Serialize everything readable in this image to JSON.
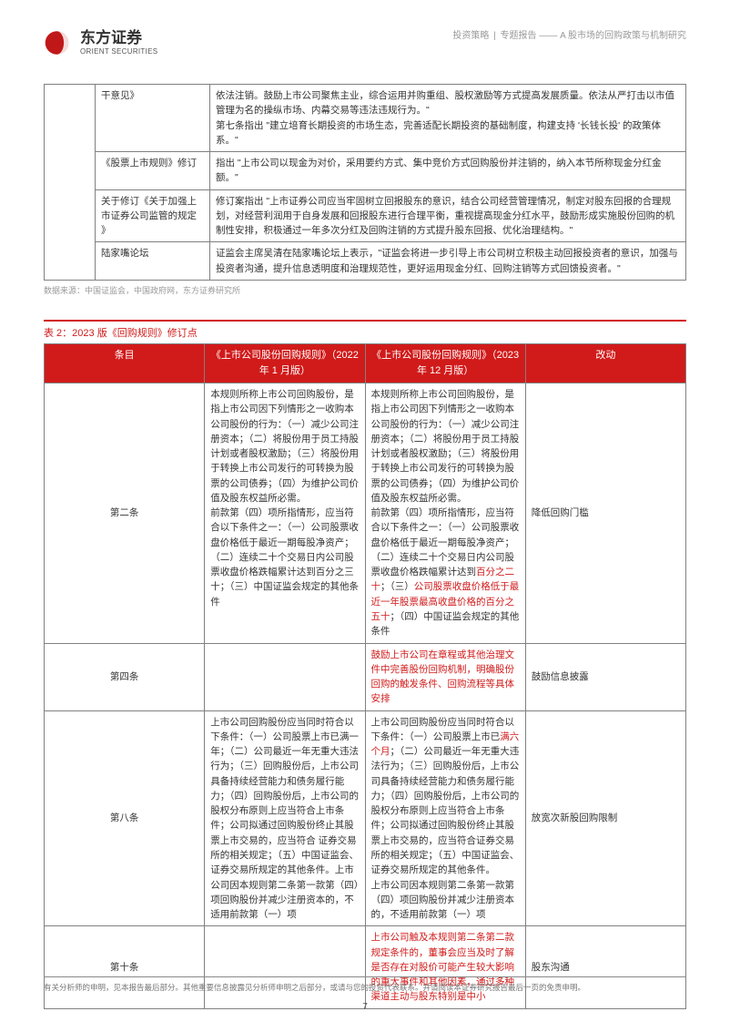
{
  "header": {
    "logo_cn": "东方证券",
    "logo_en": "ORIENT SECURITIES",
    "cat1": "投资策略",
    "cat2": "专题报告",
    "title": "A 股市场的回购政策与机制研究"
  },
  "table1": {
    "rows": [
      {
        "c2": "干意见》",
        "c3": "依法注销。鼓励上市公司聚焦主业，综合运用并购重组、股权激励等方式提高发展质量。依法从严打击以市值管理为名的操纵市场、内幕交易等违法违规行为。\"\n第七条指出 \"建立培育长期投资的市场生态，完善适配长期投资的基础制度，构建支持 '长钱长投' 的政策体系。\""
      },
      {
        "c2": "《股票上市规则》修订",
        "c3": "指出 \"上市公司以现金为对价，采用要约方式、集中竞价方式回购股份并注销的，纳入本节所称现金分红金额。\""
      },
      {
        "c2": "关于修订《关于加强上市证券公司监管的规定 》",
        "c3": "修订案指出 \"上市证券公司应当牢固树立回报股东的意识，结合公司经营管理情况，制定对股东回报的合理规划，对经营利润用于自身发展和回报股东进行合理平衡，重视提高现金分红水平，鼓励形成实施股份回购的机制性安排，积极通过一年多次分红及回购注销的方式提升股东回报、优化治理结构。\""
      },
      {
        "c2": "陆家嘴论坛",
        "c3": "证监会主席吴清在陆家嘴论坛上表示，\"证监会将进一步引导上市公司树立积极主动回报投资者的意识，加强与投资者沟通，提升信息透明度和治理规范性，更好运用现金分红、回购注销等方式回馈投资者。\""
      }
    ],
    "source": "数据来源：中国证监会，中国政府网，东方证券研究所"
  },
  "table2": {
    "title": "表 2：2023 版《回购规则》修订点",
    "head": [
      "条目",
      "《上市公司股份回购规则》（2022 年 1 月版）",
      "《上市公司股份回购规则》（2023 年 12 月版）",
      "改动"
    ],
    "rows": [
      {
        "c1": "第二条",
        "c2": "本规则所称上市公司回购股份，是指上市公司因下列情形之一收购本公司股份的行为：（一）减少公司注册资本；（二）将股份用于员工持股计划或者股权激励；（三）将股份用于转换上市公司发行的可转换为股票的公司债券；（四）为维护公司价值及股东权益所必需。\n前款第（四）项所指情形，应当符合以下条件之一：（一）公司股票收盘价格低于最近一期每股净资产；（二）连续二十个交易日内公司股票收盘价格跌幅累计达到百分之三十；（三）中国证监会规定的其他条件",
        "c3_parts": [
          {
            "t": "本规则所称上市公司回购股份，是指上市公司因下列情形之一收购本公司股份的行为：（一）减少公司注册资本；（二）将股份用于员工持股计划或者股权激励；（三）将股份用于转换上市公司发行的可转换为股票的公司债券；（四）为维护公司价值及股东权益所必需。\n前款第（四）项所指情形，应当符合以下条件之一：（一）公司股票收盘价格低于最近一期每股净资产；（二）连续二十个交易日内公司股票收盘价格跌幅累计达到",
            "h": false
          },
          {
            "t": "百分之二十",
            "h": true
          },
          {
            "t": "；（三）",
            "h": false
          },
          {
            "t": "公司股票收盘价格低于最近一年股票最高收盘价格的百分之五十",
            "h": true
          },
          {
            "t": "；（四）中国证监会规定的其他条件",
            "h": false
          }
        ],
        "c4": "降低回购门槛"
      },
      {
        "c1": "第四条",
        "c2": "",
        "c3_parts": [
          {
            "t": "鼓励上市公司在章程或其他治理文件中完善股份回购机制，明确股份回购的触发条件、回购流程等具体安排",
            "h": true
          }
        ],
        "c4": "鼓励信息披露"
      },
      {
        "c1": "第八条",
        "c2": "上市公司回购股份应当同时符合以下条件：（一）公司股票上市已满一年；（二）公司最近一年无重大违法行为；（三）回购股份后，上市公司具备持续经营能力和债务履行能力；（四）回购股份后，上市公司的股权分布原则上应当符合上市条件；公司拟通过回购股份终止其股票上市交易的，应当符合 证券交易所的相关规定；（五）中国证监会、证券交易所规定的其他条件。上市公司因本规则第二条第一款第（四）项回购股份并减少注册资本的，不适用前款第（一）项",
        "c3_parts": [
          {
            "t": "上市公司回购股份应当同时符合以下条件：（一）公司股票上市已",
            "h": false
          },
          {
            "t": "满六个月",
            "h": true
          },
          {
            "t": "；（二）公司最近一年无重大违法行为；（三）回购股份后，上市公司具备持续经营能力和债务履行能力；（四）回购股份后，上市公司的股权分布原则上应当符合上市条件；公司拟通过回购股份终止其股票上市交易的，应当符合证券交易所的相关规定；（五）中国证监会、证券交易所规定的其他条件。\n上市公司因本规则第二条第一款第（四）项回购股份并减少注册资本的，不适用前款第（一）项",
            "h": false
          }
        ],
        "c4": "放宽次新股回购限制"
      },
      {
        "c1": "第十条",
        "c2": "",
        "c3_parts": [
          {
            "t": "上市公司触及本规则第二条第二款规定条件的，董事会应当及时了解是否存在对股价可能产生较大影响的重大事件和其他因素，通过多种渠道主动与股东特别是中小",
            "h": true
          }
        ],
        "c4": "股东沟通"
      }
    ]
  },
  "footer": {
    "disclaimer": "有关分析师的申明，见本报告最后部分。其他重要信息披露见分析师申明之后部分，或请与您的投资代表联系。并请阅读本证券研究报告最后一页的免责申明。",
    "page": "7"
  },
  "colors": {
    "accent": "#d11a1a",
    "text": "#333333",
    "muted": "#999999",
    "border": "#808080",
    "white": "#ffffff"
  }
}
